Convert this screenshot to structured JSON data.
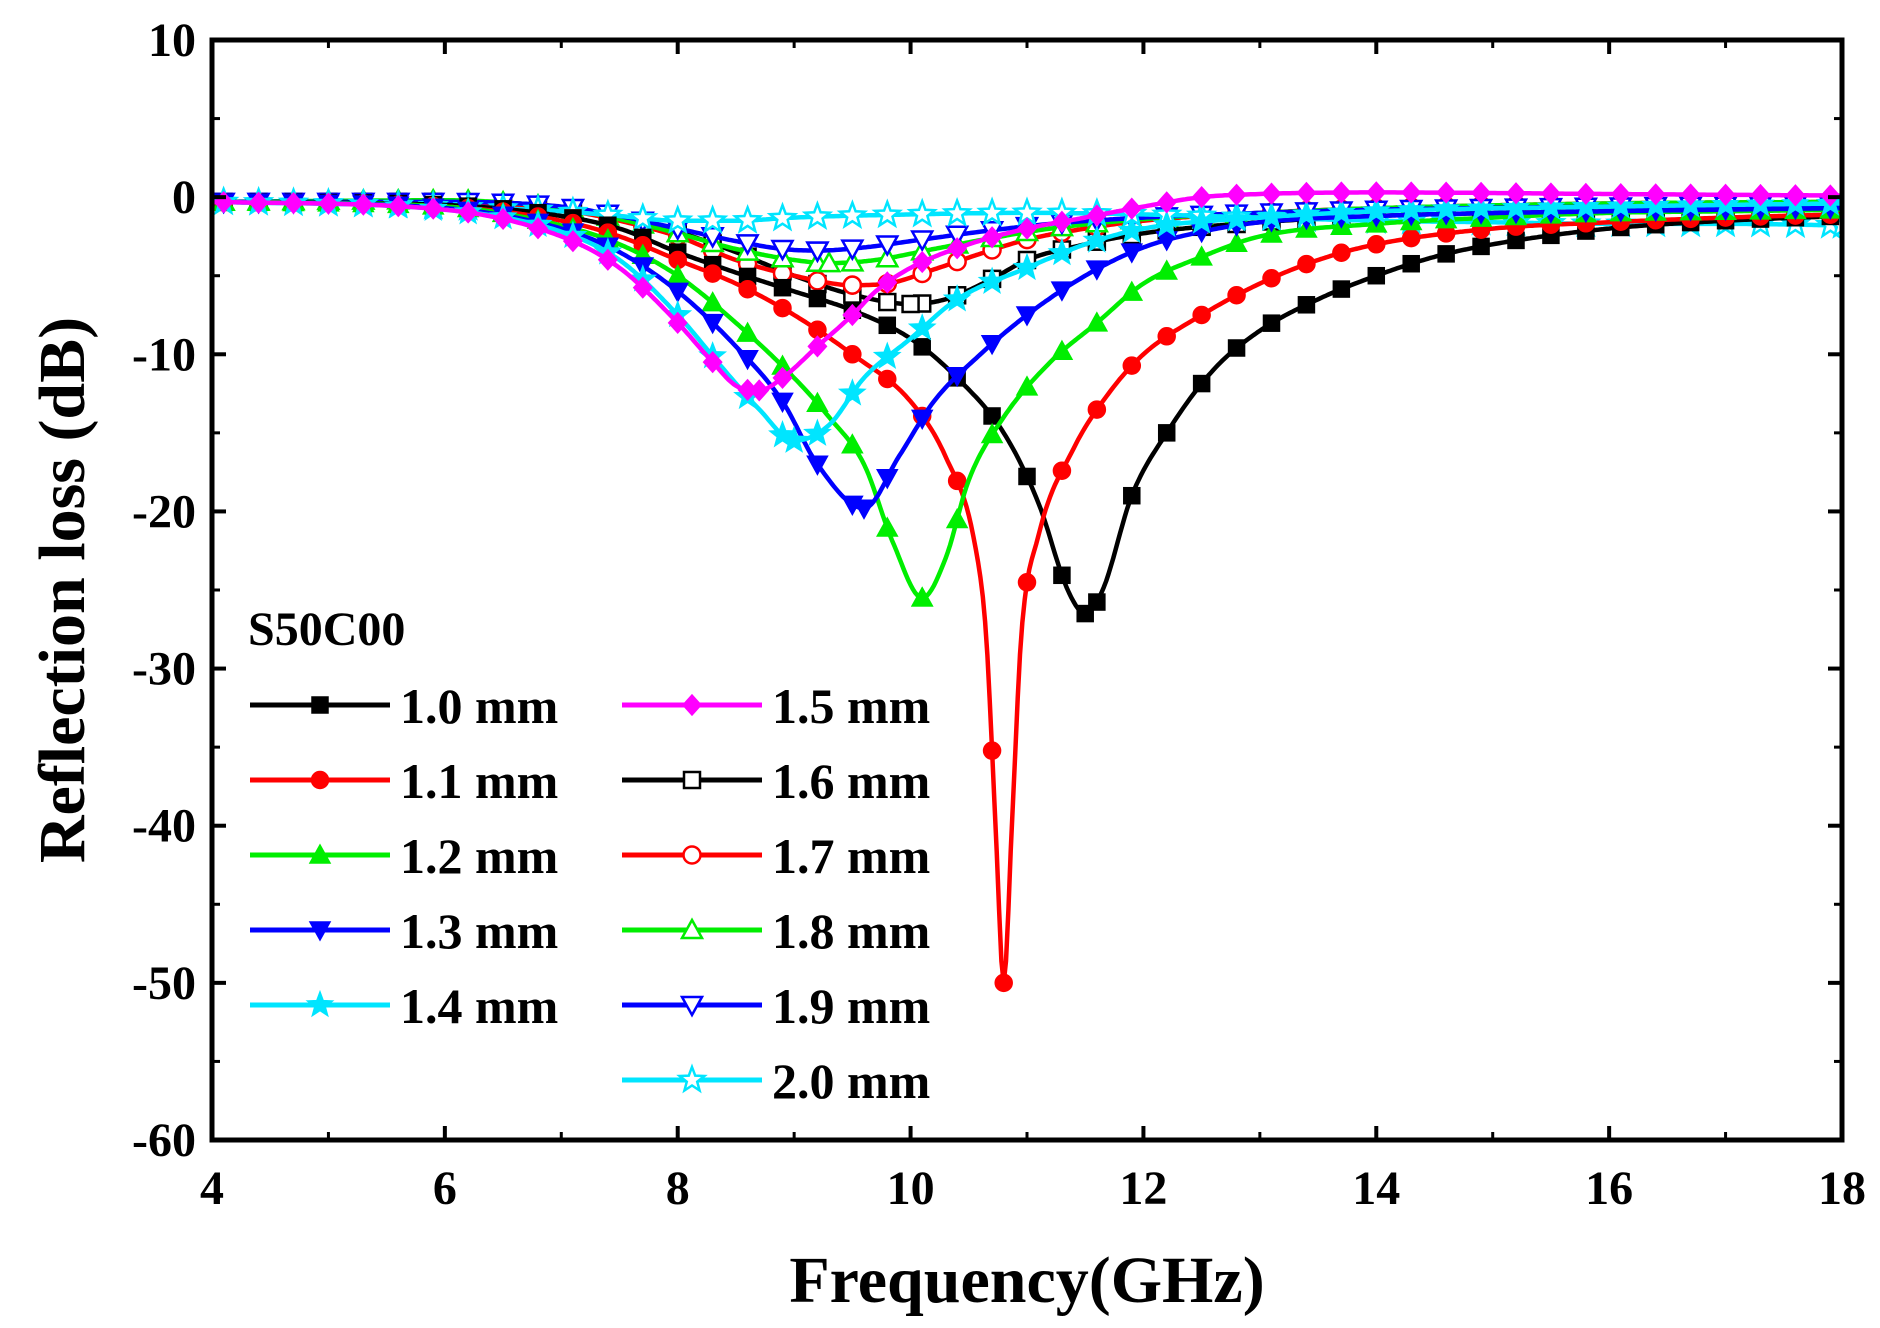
{
  "chart_data": {
    "type": "line",
    "xlabel": "Frequency(GHz)",
    "ylabel": "Reflection loss (dB)",
    "xlim": [
      4,
      18
    ],
    "ylim": [
      -60,
      10
    ],
    "xticks": [
      4,
      6,
      8,
      10,
      12,
      14,
      16,
      18
    ],
    "yticks": [
      10,
      0,
      -10,
      -20,
      -30,
      -40,
      -50,
      -60
    ],
    "grid": false,
    "legend_title": "S50C00",
    "legend_position": "bottom-left",
    "series": [
      {
        "name": "1.0 mm",
        "color": "#000000",
        "marker": "square-filled",
        "points": [
          [
            4,
            -0.3
          ],
          [
            6,
            -0.5
          ],
          [
            7,
            -1.2
          ],
          [
            7.5,
            -2
          ],
          [
            8,
            -3.5
          ],
          [
            8.5,
            -4.8
          ],
          [
            9,
            -6
          ],
          [
            9.5,
            -7.2
          ],
          [
            10,
            -9
          ],
          [
            10.4,
            -11.5
          ],
          [
            10.8,
            -15
          ],
          [
            11.1,
            -19.5
          ],
          [
            11.35,
            -25
          ],
          [
            11.5,
            -26.5
          ],
          [
            11.65,
            -25
          ],
          [
            11.9,
            -19
          ],
          [
            12.2,
            -15
          ],
          [
            12.6,
            -11
          ],
          [
            13,
            -8.5
          ],
          [
            13.5,
            -6.5
          ],
          [
            14,
            -5
          ],
          [
            14.5,
            -3.8
          ],
          [
            15,
            -3
          ],
          [
            16,
            -2
          ],
          [
            17,
            -1.5
          ],
          [
            18,
            -1.2
          ]
        ]
      },
      {
        "name": "1.1 mm",
        "color": "#ff0000",
        "marker": "circle-filled",
        "points": [
          [
            4,
            -0.3
          ],
          [
            6,
            -0.6
          ],
          [
            7,
            -1.5
          ],
          [
            7.5,
            -2.5
          ],
          [
            8,
            -4
          ],
          [
            8.5,
            -5.5
          ],
          [
            9,
            -7.5
          ],
          [
            9.5,
            -10
          ],
          [
            10,
            -13
          ],
          [
            10.3,
            -16.5
          ],
          [
            10.55,
            -22
          ],
          [
            10.65,
            -28
          ],
          [
            10.73,
            -40
          ],
          [
            10.8,
            -50
          ],
          [
            10.87,
            -40
          ],
          [
            10.95,
            -28
          ],
          [
            11.1,
            -21.5
          ],
          [
            11.4,
            -16
          ],
          [
            11.7,
            -12.5
          ],
          [
            12,
            -10
          ],
          [
            12.5,
            -7.5
          ],
          [
            13,
            -5.5
          ],
          [
            13.5,
            -4
          ],
          [
            14,
            -3
          ],
          [
            15,
            -2
          ],
          [
            16,
            -1.6
          ],
          [
            17,
            -1.3
          ],
          [
            18,
            -1.1
          ]
        ]
      },
      {
        "name": "1.2 mm",
        "color": "#00ee00",
        "marker": "triangle-up-filled",
        "points": [
          [
            4,
            -0.3
          ],
          [
            6,
            -0.6
          ],
          [
            7,
            -1.8
          ],
          [
            7.5,
            -3
          ],
          [
            8,
            -5
          ],
          [
            8.5,
            -8
          ],
          [
            9,
            -11.5
          ],
          [
            9.3,
            -14
          ],
          [
            9.6,
            -17
          ],
          [
            9.85,
            -22
          ],
          [
            10.1,
            -25.5
          ],
          [
            10.3,
            -23
          ],
          [
            10.5,
            -18
          ],
          [
            10.8,
            -14
          ],
          [
            11.2,
            -10.5
          ],
          [
            11.6,
            -8
          ],
          [
            12,
            -5.5
          ],
          [
            12.5,
            -3.8
          ],
          [
            13,
            -2.5
          ],
          [
            14,
            -1.7
          ],
          [
            15,
            -1.3
          ],
          [
            16,
            -1
          ],
          [
            17,
            -0.9
          ],
          [
            18,
            -0.8
          ]
        ]
      },
      {
        "name": "1.3 mm",
        "color": "#0000ff",
        "marker": "triangle-down-filled",
        "points": [
          [
            4,
            -0.3
          ],
          [
            6,
            -0.7
          ],
          [
            7,
            -2
          ],
          [
            7.5,
            -3.5
          ],
          [
            8,
            -6
          ],
          [
            8.5,
            -9.5
          ],
          [
            8.9,
            -13
          ],
          [
            9.2,
            -17
          ],
          [
            9.6,
            -19.8
          ],
          [
            9.9,
            -16.5
          ],
          [
            10.2,
            -13
          ],
          [
            10.6,
            -10
          ],
          [
            11,
            -7.5
          ],
          [
            11.5,
            -5
          ],
          [
            12,
            -3.2
          ],
          [
            12.5,
            -2.2
          ],
          [
            13,
            -1.6
          ],
          [
            14,
            -1.2
          ],
          [
            16,
            -0.9
          ],
          [
            18,
            -0.7
          ]
        ]
      },
      {
        "name": "1.4 mm",
        "color": "#00e5ff",
        "marker": "star-filled",
        "points": [
          [
            4,
            -0.3
          ],
          [
            6,
            -0.8
          ],
          [
            7,
            -2.2
          ],
          [
            7.5,
            -4
          ],
          [
            8,
            -7.5
          ],
          [
            8.4,
            -11
          ],
          [
            8.7,
            -13.5
          ],
          [
            9,
            -15.5
          ],
          [
            9.3,
            -14.5
          ],
          [
            9.6,
            -11.5
          ],
          [
            10,
            -9
          ],
          [
            10.4,
            -6.5
          ],
          [
            11,
            -4.5
          ],
          [
            11.5,
            -3
          ],
          [
            12,
            -2
          ],
          [
            13,
            -1.3
          ],
          [
            14,
            -0.9
          ],
          [
            16,
            -0.6
          ],
          [
            18,
            -0.4
          ]
        ]
      },
      {
        "name": "1.5 mm",
        "color": "#ff00ff",
        "marker": "diamond-filled",
        "points": [
          [
            4,
            -0.3
          ],
          [
            6,
            -0.8
          ],
          [
            7,
            -2.5
          ],
          [
            7.5,
            -4.5
          ],
          [
            8,
            -8
          ],
          [
            8.3,
            -10.5
          ],
          [
            8.5,
            -12
          ],
          [
            8.7,
            -12.3
          ],
          [
            8.9,
            -11.5
          ],
          [
            9.2,
            -9.5
          ],
          [
            9.5,
            -7.5
          ],
          [
            9.7,
            -6
          ],
          [
            10,
            -4.5
          ],
          [
            10.5,
            -3
          ],
          [
            11,
            -2
          ],
          [
            11.5,
            -1.3
          ],
          [
            12,
            -0.6
          ],
          [
            12.5,
            0
          ],
          [
            13,
            0.2
          ],
          [
            14,
            0.3
          ],
          [
            16,
            0.2
          ],
          [
            18,
            0.1
          ]
        ]
      },
      {
        "name": "1.6 mm",
        "color": "#000000",
        "marker": "square-open",
        "points": [
          [
            4,
            -0.3
          ],
          [
            6,
            -0.3
          ],
          [
            7,
            -0.7
          ],
          [
            7.5,
            -1.2
          ],
          [
            8,
            -2.2
          ],
          [
            8.5,
            -3.5
          ],
          [
            9,
            -5
          ],
          [
            9.5,
            -6.2
          ],
          [
            10,
            -6.8
          ],
          [
            10.3,
            -6.5
          ],
          [
            10.7,
            -5.2
          ],
          [
            11,
            -4
          ],
          [
            11.5,
            -3
          ],
          [
            12,
            -2.3
          ],
          [
            13,
            -1.6
          ],
          [
            14,
            -1.2
          ],
          [
            16,
            -0.9
          ],
          [
            18,
            -0.7
          ]
        ]
      },
      {
        "name": "1.7 mm",
        "color": "#ff0000",
        "marker": "circle-open",
        "points": [
          [
            4,
            -0.3
          ],
          [
            6,
            -0.3
          ],
          [
            7,
            -0.8
          ],
          [
            7.5,
            -1.5
          ],
          [
            8,
            -2.5
          ],
          [
            8.5,
            -4
          ],
          [
            9,
            -5
          ],
          [
            9.5,
            -5.6
          ],
          [
            9.8,
            -5.5
          ],
          [
            10.2,
            -4.6
          ],
          [
            10.6,
            -3.6
          ],
          [
            11,
            -2.7
          ],
          [
            11.5,
            -2
          ],
          [
            12,
            -1.5
          ],
          [
            13,
            -1
          ],
          [
            14,
            -0.7
          ],
          [
            16,
            -0.4
          ],
          [
            18,
            -0.3
          ]
        ]
      },
      {
        "name": "1.8 mm",
        "color": "#00ee00",
        "marker": "triangle-up-open",
        "points": [
          [
            4,
            -0.3
          ],
          [
            6,
            -0.2
          ],
          [
            7,
            -0.7
          ],
          [
            7.5,
            -1.4
          ],
          [
            8,
            -2.3
          ],
          [
            8.5,
            -3.3
          ],
          [
            9,
            -4
          ],
          [
            9.3,
            -4.2
          ],
          [
            9.7,
            -4
          ],
          [
            10.2,
            -3.3
          ],
          [
            10.7,
            -2.6
          ],
          [
            11.2,
            -2
          ],
          [
            12,
            -1.4
          ],
          [
            13,
            -1
          ],
          [
            14,
            -0.7
          ],
          [
            16,
            -0.4
          ],
          [
            18,
            -0.3
          ]
        ]
      },
      {
        "name": "1.9 mm",
        "color": "#0000ff",
        "marker": "triangle-down-open",
        "points": [
          [
            4,
            -0.3
          ],
          [
            6,
            -0.3
          ],
          [
            7,
            -0.6
          ],
          [
            7.5,
            -1.2
          ],
          [
            8,
            -2
          ],
          [
            8.5,
            -2.8
          ],
          [
            8.9,
            -3.3
          ],
          [
            9.2,
            -3.4
          ],
          [
            9.6,
            -3.2
          ],
          [
            10,
            -2.8
          ],
          [
            10.6,
            -2.2
          ],
          [
            11.2,
            -1.7
          ],
          [
            12,
            -1.3
          ],
          [
            13,
            -1
          ],
          [
            14,
            -0.8
          ],
          [
            16,
            -0.6
          ],
          [
            18,
            -0.5
          ]
        ]
      },
      {
        "name": "2.0 mm",
        "color": "#00e5ff",
        "marker": "star-open",
        "points": [
          [
            4,
            -0.3
          ],
          [
            5,
            -0.4
          ],
          [
            6,
            -0.6
          ],
          [
            7,
            -0.9
          ],
          [
            7.5,
            -1.2
          ],
          [
            8,
            -1.5
          ],
          [
            8.5,
            -1.5
          ],
          [
            9,
            -1.3
          ],
          [
            10,
            -1.1
          ],
          [
            11,
            -1
          ],
          [
            12,
            -1.1
          ],
          [
            13,
            -1.3
          ],
          [
            14,
            -1.5
          ],
          [
            15,
            -1.6
          ],
          [
            16,
            -1.7
          ],
          [
            17,
            -1.7
          ],
          [
            18,
            -1.8
          ]
        ]
      }
    ]
  }
}
